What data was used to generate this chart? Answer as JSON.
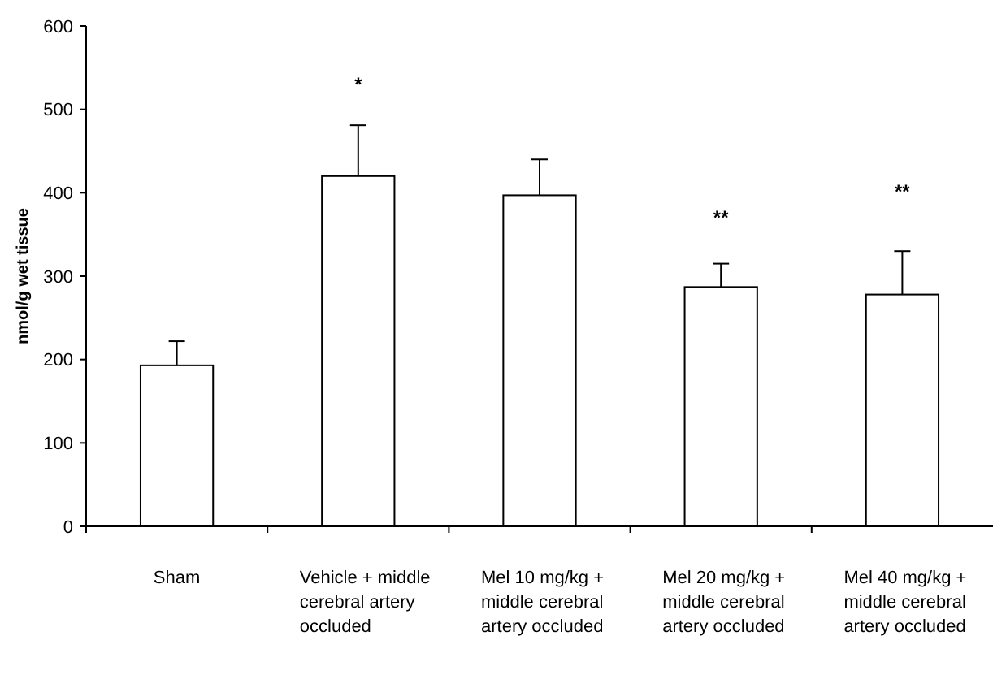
{
  "chart_data": {
    "type": "bar",
    "ylabel": "nmol/g wet tissue",
    "categories": [
      "Sham",
      "Vehicle + middle cerebral artery occluded",
      "Mel 10 mg/kg + middle cerebral artery occluded",
      "Mel 20 mg/kg + middle cerebral artery occluded",
      "Mel 40 mg/kg + middle cerebral artery occluded"
    ],
    "values": [
      193,
      420,
      397,
      287,
      278
    ],
    "errors": [
      [
        193,
        222
      ],
      [
        420,
        481
      ],
      [
        397,
        440
      ],
      [
        287,
        315
      ],
      [
        278,
        330
      ]
    ],
    "color": "#ffffff",
    "ylim": [
      0,
      600
    ],
    "yticks": [
      0,
      100,
      200,
      300,
      400,
      500,
      600
    ],
    "annotations": [
      "*",
      "**",
      "**"
    ]
  }
}
